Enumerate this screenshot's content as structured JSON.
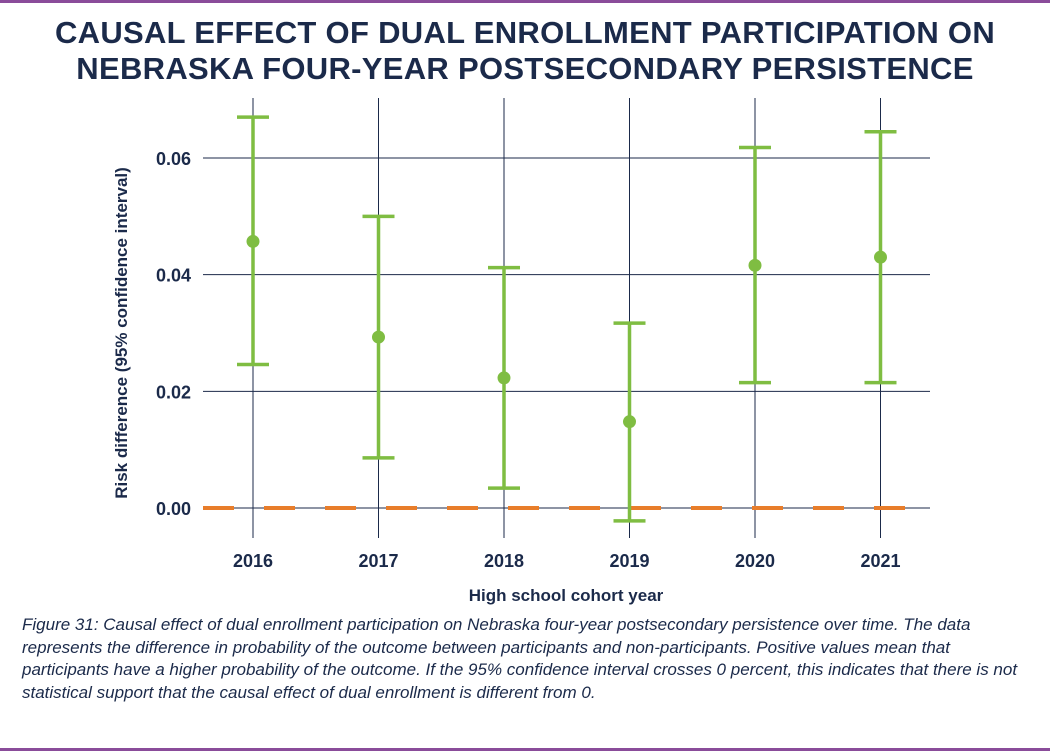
{
  "title_line1": "CAUSAL EFFECT OF DUAL ENROLLMENT PARTICIPATION ON",
  "title_line2": "NEBRASKA FOUR-YEAR POSTSECONDARY PERSISTENCE",
  "caption": "Figure 31: Causal effect of dual enrollment participation on Nebraska four-year postsecondary persistence over time. The data represents the difference in probability of the outcome between participants and non-participants. Positive values mean that participants have a higher probability of the outcome. If the 95% confidence interval crosses 0 percent, this indicates that there is not statistical support that the causal effect of dual enrollment is different from 0.",
  "colors": {
    "title": "#1b2a4a",
    "point": "#7fbd42",
    "zero_line": "#e87d2a",
    "grid": "#1b2a4a",
    "border": "#8a4c9a"
  },
  "chart_data": {
    "type": "scatter",
    "variant": "point-with-error-bars",
    "xlabel": "High school cohort year",
    "ylabel": "Risk difference (95% confidence interval)",
    "categories": [
      "2016",
      "2017",
      "2018",
      "2019",
      "2020",
      "2021"
    ],
    "estimates": [
      0.0457,
      0.0293,
      0.0223,
      0.0148,
      0.0416,
      0.043
    ],
    "ci_lower": [
      0.0246,
      0.0086,
      0.0034,
      -0.0022,
      0.0215,
      0.0215
    ],
    "ci_upper": [
      0.067,
      0.05,
      0.0412,
      0.0317,
      0.0618,
      0.0645
    ],
    "yticks": [
      0.0,
      0.02,
      0.04,
      0.06
    ],
    "ytick_labels": [
      "0.00",
      "0.02",
      "0.04",
      "0.06"
    ],
    "ylim": [
      -0.006,
      0.0705
    ],
    "reference_line": {
      "y": 0,
      "style": "dashed"
    },
    "grid": true,
    "legend": false
  }
}
